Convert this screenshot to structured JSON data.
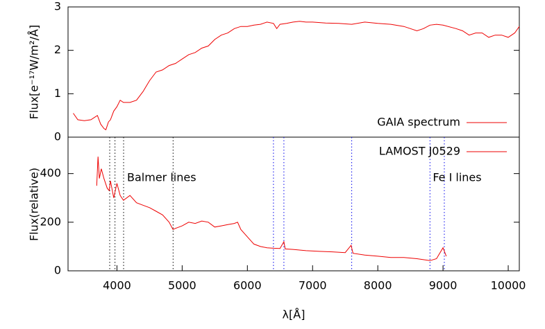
{
  "chart_data": [
    {
      "type": "line",
      "ylabel": "Flux[e⁻¹⁷W/m²/Å]",
      "xlim": [
        3250,
        10170
      ],
      "ylim": [
        0,
        3
      ],
      "yticks": [
        0,
        1,
        2,
        3
      ],
      "legend": "lower-right",
      "series": [
        {
          "name": "GAIA spectrum",
          "color": "#ee0000",
          "x": [
            3330,
            3400,
            3500,
            3600,
            3650,
            3700,
            3750,
            3800,
            3830,
            3870,
            3900,
            3950,
            4000,
            4050,
            4100,
            4200,
            4300,
            4400,
            4500,
            4600,
            4700,
            4800,
            4900,
            5000,
            5100,
            5200,
            5300,
            5400,
            5500,
            5600,
            5700,
            5800,
            5900,
            6000,
            6100,
            6200,
            6300,
            6400,
            6450,
            6500,
            6600,
            6700,
            6800,
            6900,
            7000,
            7200,
            7400,
            7600,
            7800,
            8000,
            8200,
            8400,
            8500,
            8600,
            8700,
            8800,
            8900,
            9000,
            9200,
            9300,
            9400,
            9500,
            9600,
            9700,
            9800,
            9900,
            10000,
            10100,
            10170
          ],
          "values": [
            0.55,
            0.4,
            0.38,
            0.4,
            0.45,
            0.5,
            0.3,
            0.2,
            0.17,
            0.35,
            0.4,
            0.6,
            0.7,
            0.85,
            0.8,
            0.8,
            0.85,
            1.05,
            1.3,
            1.5,
            1.55,
            1.65,
            1.7,
            1.8,
            1.9,
            1.95,
            2.05,
            2.1,
            2.25,
            2.35,
            2.4,
            2.5,
            2.55,
            2.55,
            2.58,
            2.6,
            2.65,
            2.62,
            2.5,
            2.6,
            2.62,
            2.65,
            2.67,
            2.65,
            2.65,
            2.63,
            2.62,
            2.6,
            2.65,
            2.62,
            2.6,
            2.55,
            2.5,
            2.45,
            2.5,
            2.58,
            2.6,
            2.58,
            2.5,
            2.45,
            2.35,
            2.4,
            2.4,
            2.3,
            2.35,
            2.35,
            2.3,
            2.4,
            2.55
          ]
        }
      ]
    },
    {
      "type": "line",
      "ylabel": "Flux(relative)",
      "xlabel": "λ[Å]",
      "xlim": [
        3250,
        10170
      ],
      "xticks": [
        4000,
        5000,
        6000,
        7000,
        8000,
        9000,
        10000
      ],
      "ylim": [
        0,
        550
      ],
      "yticks": [
        0,
        200,
        400
      ],
      "legend": "upper-right",
      "series": [
        {
          "name": "LAMOST J0529",
          "color": "#ee0000",
          "x": [
            3690,
            3710,
            3730,
            3760,
            3800,
            3850,
            3880,
            3900,
            3950,
            4000,
            4050,
            4100,
            4200,
            4300,
            4400,
            4500,
            4600,
            4700,
            4800,
            4860,
            4900,
            5000,
            5100,
            5200,
            5300,
            5400,
            5500,
            5600,
            5700,
            5800,
            5850,
            5900,
            6000,
            6100,
            6200,
            6300,
            6400,
            6500,
            6560,
            6580,
            6700,
            6900,
            7100,
            7300,
            7500,
            7590,
            7620,
            7800,
            8000,
            8200,
            8400,
            8600,
            8800,
            8900,
            9000,
            9050
          ],
          "values": [
            350,
            470,
            380,
            420,
            380,
            340,
            330,
            370,
            300,
            360,
            310,
            290,
            310,
            280,
            270,
            260,
            245,
            230,
            200,
            170,
            175,
            185,
            200,
            195,
            205,
            200,
            180,
            185,
            190,
            195,
            200,
            170,
            140,
            110,
            100,
            95,
            93,
            92,
            120,
            90,
            88,
            83,
            80,
            78,
            75,
            105,
            72,
            65,
            60,
            55,
            55,
            50,
            42,
            50,
            95,
            60
          ]
        }
      ],
      "reference_lines": [
        {
          "label": "Balmer lines",
          "color": "#000000",
          "x": [
            3889,
            3970,
            4102,
            4861
          ]
        },
        {
          "label": "Fe I lines",
          "color": "#0000ee",
          "x": [
            6400,
            6560,
            7600,
            8800,
            9020
          ]
        }
      ]
    }
  ]
}
